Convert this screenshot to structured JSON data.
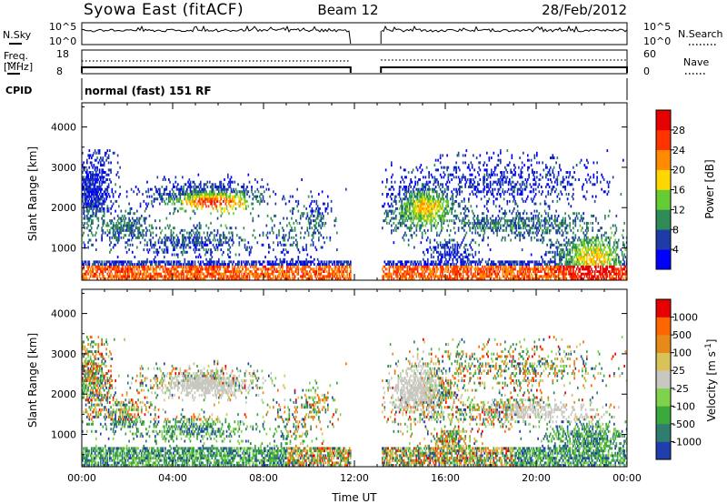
{
  "header": {
    "station": "Syowa East (fitACF)",
    "beam": "Beam 12",
    "date": "28/Feb/2012"
  },
  "top_panels": {
    "nsky_label": "N.Sky",
    "nsearch_label": "N.Search",
    "nsky_ticks": [
      "10^5",
      "10^0"
    ],
    "nsearch_ticks": [
      "10^5",
      "10^0"
    ],
    "freq_label_1": "Freq.",
    "freq_label_2": "[MHz]",
    "freq_ticks": [
      "18",
      "8"
    ],
    "nave_label": "Nave",
    "nave_ticks": [
      "60",
      "0"
    ],
    "cpid_label": "CPID",
    "cpid_text": "normal (fast) 151 RF"
  },
  "chart_data": [
    {
      "type": "heatmap",
      "title": "",
      "ylabel": "Slant Range [km]",
      "xlabel": "",
      "parameter": "Power",
      "colorbar_label": "Power [dB]",
      "colorbar_ticks": [
        "28",
        "24",
        "20",
        "16",
        "12",
        "8",
        "4"
      ],
      "colorbar_colors": [
        "#0000ff",
        "#1e3ca8",
        "#2e8b57",
        "#66cc33",
        "#ffd700",
        "#ff8c00",
        "#ff3300",
        "#e60000"
      ],
      "yticks": [
        "1000",
        "2000",
        "3000",
        "4000"
      ],
      "ylim": [
        200,
        4600
      ],
      "xlim": [
        "00:00",
        "24:00"
      ],
      "data_gap_ut": [
        "11:50",
        "13:10"
      ]
    },
    {
      "type": "heatmap",
      "title": "",
      "ylabel": "Slant Range [km]",
      "xlabel": "Time UT",
      "parameter": "Velocity",
      "colorbar_label": "Velocity [m s",
      "colorbar_label_sup": "-1",
      "colorbar_label_end": "]",
      "colorbar_ticks": [
        "1000",
        "500",
        "100",
        "25",
        "-25",
        "-100",
        "-500",
        "-1000"
      ],
      "colorbar_colors": [
        "#1f3fae",
        "#2e7d6e",
        "#3aa83a",
        "#7fd34a",
        "#c8c8c0",
        "#d9c25a",
        "#e68a1a",
        "#ff6600",
        "#e60000"
      ],
      "yticks": [
        "1000",
        "2000",
        "3000",
        "4000"
      ],
      "ylim": [
        200,
        4600
      ],
      "xticks": [
        "00:00",
        "04:00",
        "08:00",
        "12:00",
        "16:00",
        "20:00",
        "00:00"
      ],
      "xlim": [
        "00:00",
        "24:00"
      ],
      "data_gap_ut": [
        "11:50",
        "13:10"
      ]
    }
  ]
}
